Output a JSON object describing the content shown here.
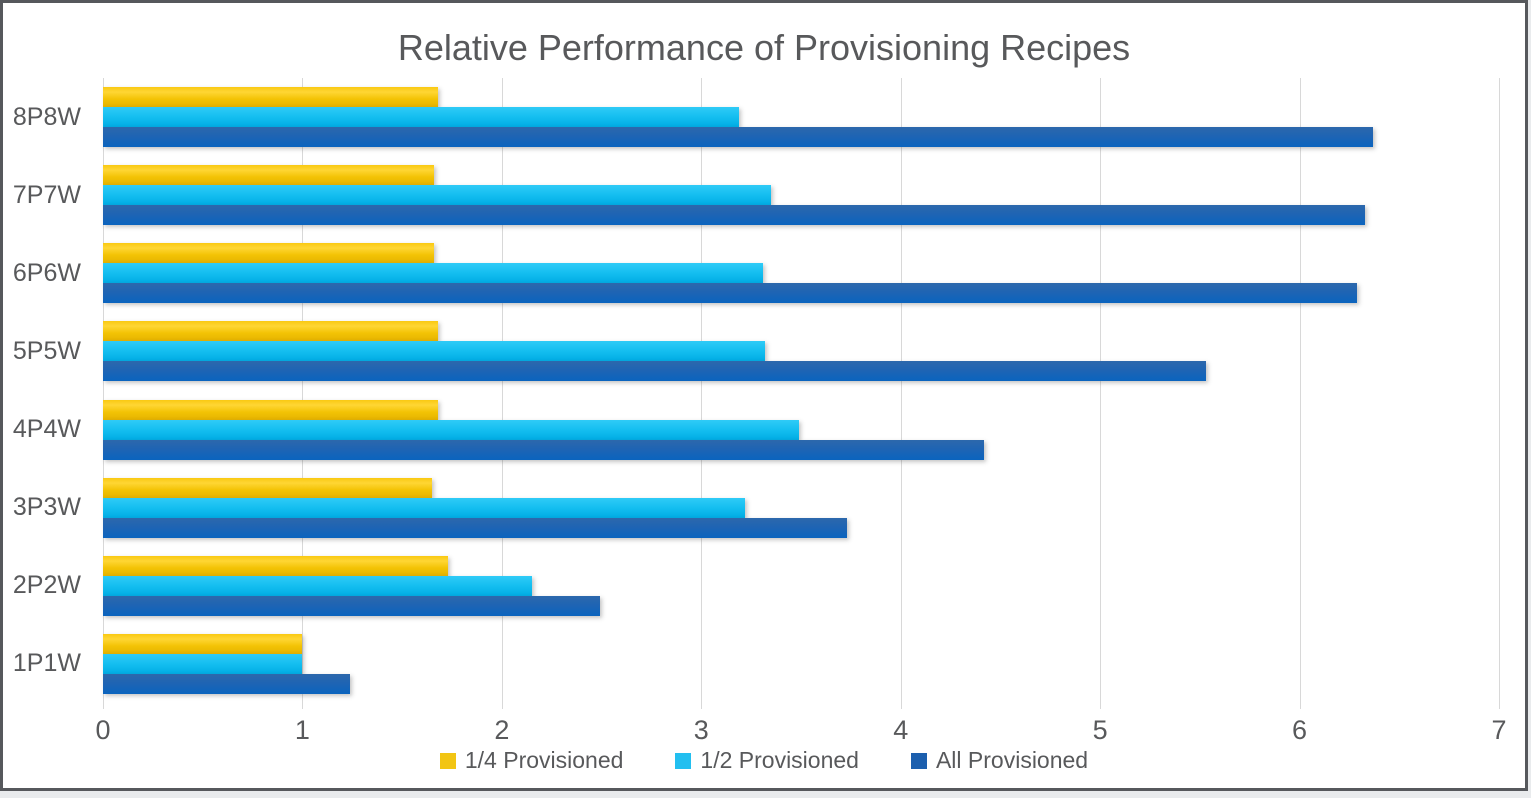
{
  "chart_data": {
    "type": "bar",
    "orientation": "horizontal",
    "title": "Relative Performance of Provisioning Recipes",
    "categories": [
      "8P8W",
      "7P7W",
      "6P6W",
      "5P5W",
      "4P4W",
      "3P3W",
      "2P2W",
      "1P1W"
    ],
    "series": [
      {
        "name": "1/4 Provisioned",
        "color": "#f2c513",
        "values": [
          1.68,
          1.66,
          1.66,
          1.68,
          1.68,
          1.65,
          1.73,
          1.0
        ]
      },
      {
        "name": "1/2 Provisioned",
        "color": "#22bff0",
        "values": [
          3.19,
          3.35,
          3.31,
          3.32,
          3.49,
          3.22,
          2.15,
          1.0
        ]
      },
      {
        "name": "All Provisioned",
        "color": "#1c5fae",
        "values": [
          6.37,
          6.33,
          6.29,
          5.53,
          4.42,
          3.73,
          2.49,
          1.24
        ]
      }
    ],
    "xlabel": "",
    "ylabel": "",
    "xlim": [
      0,
      7
    ],
    "x_ticks": [
      "0",
      "1",
      "2",
      "3",
      "4",
      "5",
      "6",
      "7"
    ],
    "grid": "vertical",
    "legend_position": "bottom",
    "colors": {
      "title_text": "#58595b",
      "axis_text": "#58595b",
      "gridline": "#d8d8d8",
      "frame_border": "#56585c",
      "background": "#ffffff"
    }
  }
}
